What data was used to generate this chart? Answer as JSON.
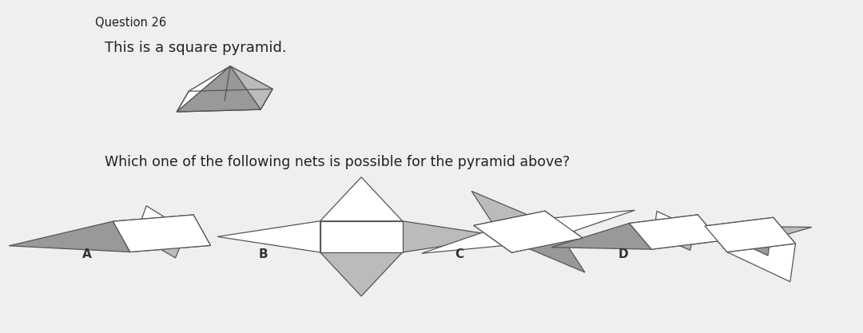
{
  "title_line1": "Question 26",
  "title_line2": "This is a square pyramid.",
  "question": "Which one of the following nets is possible for the pyramid above?",
  "bg_color": "#efefef",
  "face_color": "#bbbbbb",
  "edge_color": "#555555",
  "dark_face": "#999999",
  "white_face": "#ffffff"
}
